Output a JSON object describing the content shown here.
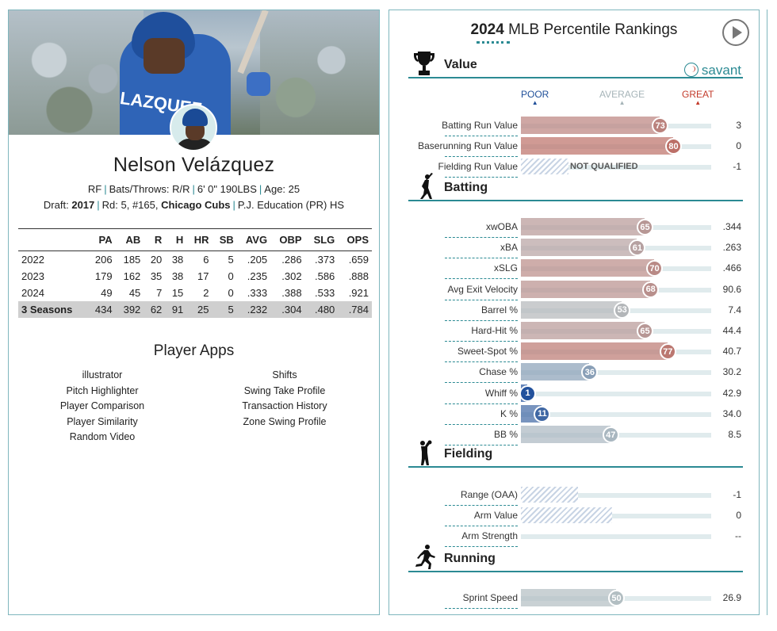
{
  "player": {
    "name": "Nelson Velázquez",
    "position": "RF",
    "bats_throws": "Bats/Throws: R/R",
    "height_weight": "6' 0\" 190LBS",
    "age": "Age: 25",
    "draft_label": "Draft:",
    "draft_year": "2017",
    "draft_round": "Rd: 5, #165,",
    "draft_team": "Chicago Cubs",
    "school": "P.J. Education (PR) HS",
    "jersey_text": "LAZQUEZ"
  },
  "stats": {
    "columns": [
      "",
      "PA",
      "AB",
      "R",
      "H",
      "HR",
      "SB",
      "AVG",
      "OBP",
      "SLG",
      "OPS"
    ],
    "rows": [
      [
        "2022",
        "206",
        "185",
        "20",
        "38",
        "6",
        "5",
        ".205",
        ".286",
        ".373",
        ".659"
      ],
      [
        "2023",
        "179",
        "162",
        "35",
        "38",
        "17",
        "0",
        ".235",
        ".302",
        ".586",
        ".888"
      ],
      [
        "2024",
        "49",
        "45",
        "7",
        "15",
        "2",
        "0",
        ".333",
        ".388",
        ".533",
        ".921"
      ]
    ],
    "total": [
      "3 Seasons",
      "434",
      "392",
      "62",
      "91",
      "25",
      "5",
      ".232",
      ".304",
      ".480",
      ".784"
    ]
  },
  "apps": {
    "title": "Player Apps",
    "left": [
      "illustrator",
      "Pitch Highlighter",
      "Player Comparison",
      "Player Similarity",
      "Random Video"
    ],
    "right": [
      "Shifts",
      "Swing Take Profile",
      "Transaction History",
      "Zone Swing Profile"
    ]
  },
  "rankings": {
    "year": "2024",
    "title": "MLB Percentile Rankings",
    "brand": "savant",
    "scale": {
      "poor": "POOR",
      "average": "AVERAGE",
      "great": "GREAT"
    },
    "colors": {
      "poor": "#1f4f99",
      "average": "#a6b4b8",
      "great": "#c33b2b",
      "accent": "#2b8a93"
    },
    "sections": [
      {
        "label": "Value",
        "icon": "trophy-icon",
        "rows": [
          {
            "label": "Batting Run Value",
            "percentile": 73,
            "value": "3"
          },
          {
            "label": "Baserunning Run Value",
            "percentile": 80,
            "value": "0"
          },
          {
            "label": "Fielding Run Value",
            "percentile": null,
            "value": "-1",
            "note": "NOT QUALIFIED"
          }
        ]
      },
      {
        "label": "Batting",
        "icon": "batter-icon",
        "rows": [
          {
            "label": "xwOBA",
            "percentile": 65,
            "value": ".344"
          },
          {
            "label": "xBA",
            "percentile": 61,
            "value": ".263"
          },
          {
            "label": "xSLG",
            "percentile": 70,
            "value": ".466"
          },
          {
            "label": "Avg Exit Velocity",
            "percentile": 68,
            "value": "90.6"
          },
          {
            "label": "Barrel %",
            "percentile": 53,
            "value": "7.4"
          },
          {
            "label": "Hard-Hit %",
            "percentile": 65,
            "value": "44.4"
          },
          {
            "label": "Sweet-Spot %",
            "percentile": 77,
            "value": "40.7"
          },
          {
            "label": "Chase %",
            "percentile": 36,
            "value": "30.2"
          },
          {
            "label": "Whiff %",
            "percentile": 1,
            "value": "42.9"
          },
          {
            "label": "K %",
            "percentile": 11,
            "value": "34.0"
          },
          {
            "label": "BB %",
            "percentile": 47,
            "value": "8.5"
          }
        ]
      },
      {
        "label": "Fielding",
        "icon": "fielder-icon",
        "rows": [
          {
            "label": "Range (OAA)",
            "percentile": null,
            "value": "-1",
            "hatch_fraction": 0.3
          },
          {
            "label": "Arm Value",
            "percentile": null,
            "value": "0",
            "hatch_fraction": 0.48
          },
          {
            "label": "Arm Strength",
            "percentile": null,
            "value": "--",
            "hatch_fraction": 0
          }
        ]
      },
      {
        "label": "Running",
        "icon": "runner-icon",
        "rows": [
          {
            "label": "Sprint Speed",
            "percentile": 50,
            "value": "26.9"
          }
        ]
      }
    ]
  }
}
